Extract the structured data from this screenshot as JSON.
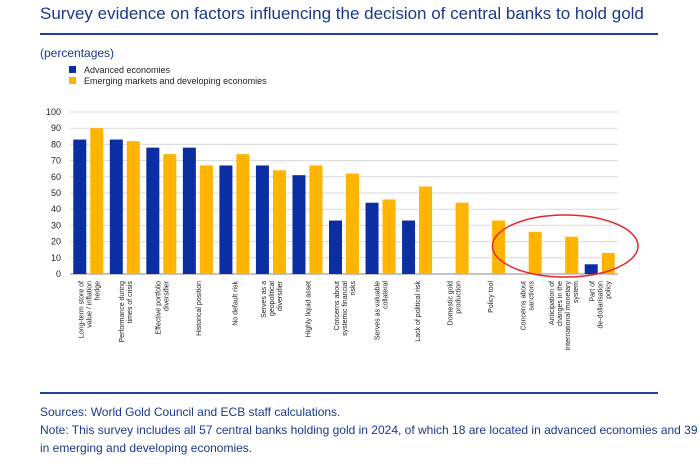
{
  "header": {
    "title": "Survey evidence on factors influencing the decision of central banks to hold gold",
    "subtitle": "(percentages)"
  },
  "footer": {
    "sources": "Sources: World Gold Council and ECB staff calculations.",
    "note": "Note: This survey includes all 57 central banks holding gold in 2024, of which 18 are located in advanced economies and 39 in emerging and developing economies."
  },
  "colors": {
    "advanced": "#0b2fa3",
    "emerging": "#ffb400",
    "highlight_circle": "#e8262b",
    "text": "#1a3a8f"
  },
  "chart_data": {
    "type": "bar",
    "categories": [
      "Long-term store of value / inflation hedge",
      "Performance during times of crisis",
      "Effective portfolio diversifier",
      "Historical position",
      "No default risk",
      "Serves as a geopolitical diversifier",
      "Highly liquid asset",
      "Concerns about systemic financial risks",
      "Serves as valuable collateral",
      "Lack of political risk",
      "Domestic gold production",
      "Policy tool",
      "Concerns about sanctions",
      "Anticipation of changes in the international monetary system",
      "Part of de-dollarisation policy"
    ],
    "series": [
      {
        "name": "Advanced economies",
        "values": [
          83,
          83,
          78,
          78,
          67,
          67,
          61,
          33,
          44,
          33,
          0,
          0,
          0,
          0,
          6
        ]
      },
      {
        "name": "Emerging markets and developing economies",
        "values": [
          90,
          82,
          74,
          67,
          74,
          64,
          67,
          62,
          46,
          54,
          44,
          33,
          26,
          23,
          13
        ]
      }
    ],
    "ylim": [
      0,
      100
    ],
    "yticks": [
      0,
      10,
      20,
      30,
      40,
      50,
      60,
      70,
      80,
      90,
      100
    ],
    "grid": true,
    "legend": "top-left",
    "highlight": "Concerns about sanctions / Anticipation of changes in the international monetary system / Part of de-dollarisation policy"
  }
}
